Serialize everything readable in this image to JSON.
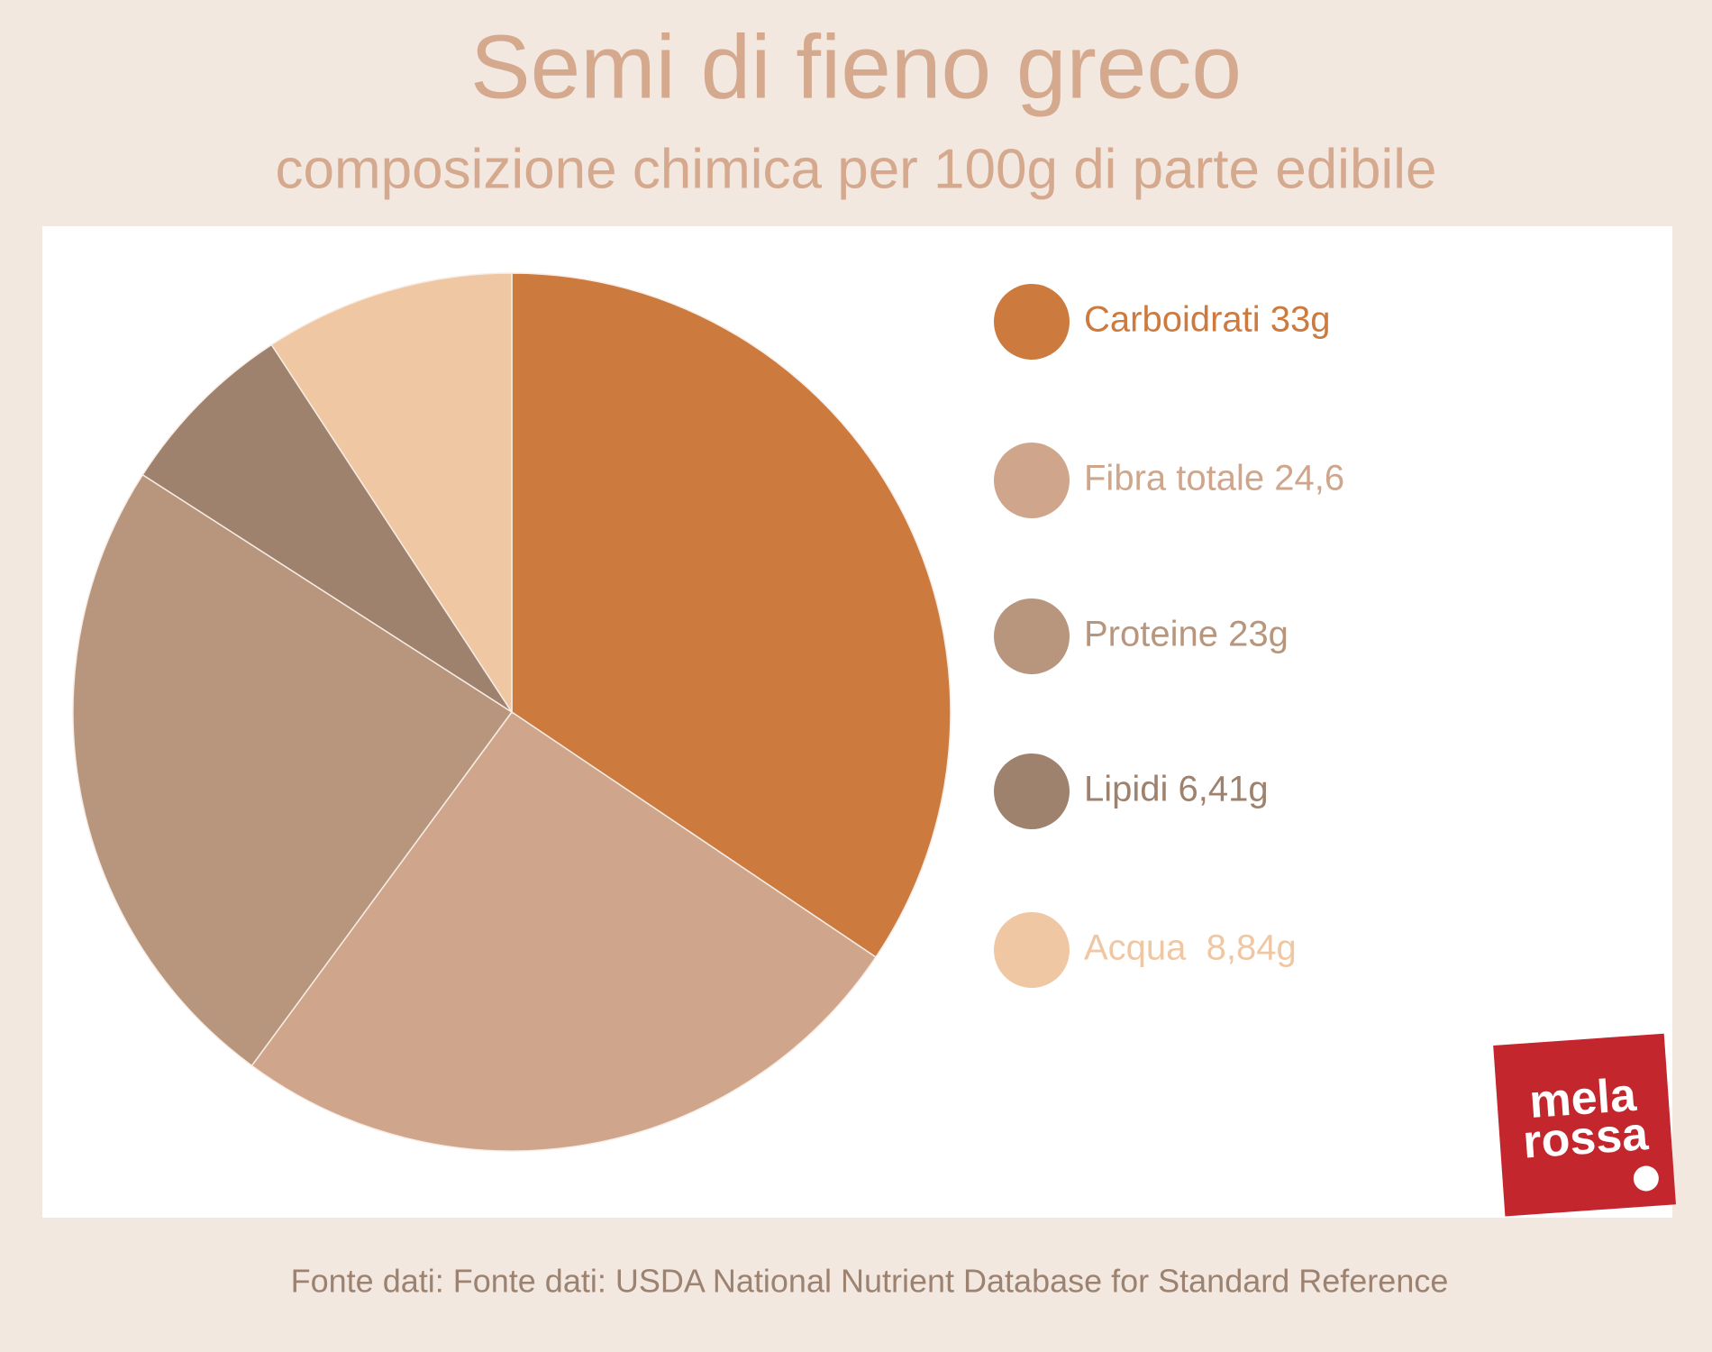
{
  "chart_data": {
    "type": "pie",
    "title": "Semi di fieno greco",
    "subtitle": "composizione chimica per 100g di parte edibile",
    "categories": [
      "Carboidrati 33g",
      "Fibra totale 24,6",
      "Proteine 23g",
      "Lipidi 6,41g",
      "Acqua  8,84g"
    ],
    "values": [
      33,
      24.6,
      23,
      6.41,
      8.84
    ],
    "colors": [
      "#cc7a3e",
      "#cfa68b",
      "#b8967e",
      "#9e826d",
      "#f0c7a3"
    ],
    "source": "Fonte dati: Fonte dati: USDA National Nutrient Database for Standard Reference",
    "logo": {
      "line1": "mela",
      "line2": "rossa"
    }
  }
}
